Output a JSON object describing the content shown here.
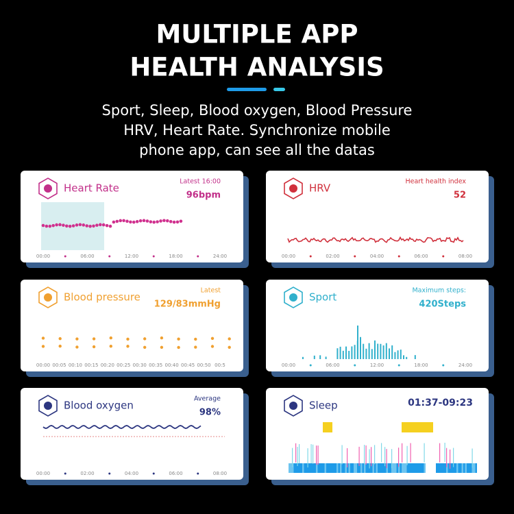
{
  "header": {
    "title_lines": [
      "MULTIPLE APP",
      "HEALTH ANALYSIS"
    ],
    "subtitle_lines": [
      "Sport, Sleep, Blood oxygen, Blood Pressure",
      "HRV, Heart Rate.  Synchronize mobile",
      "phone app, can see all the datas"
    ]
  },
  "cards": [
    {
      "title": "Heart Rate",
      "label": "Latest 16:00",
      "value": "96bpm",
      "ticks": [
        "00:00",
        "06:00",
        "12:00",
        "18:00",
        "24:00"
      ]
    },
    {
      "title": "HRV",
      "label": "Heart health index",
      "value": "52",
      "ticks": [
        "00:00",
        "02:00",
        "04:00",
        "06:00",
        "08:00"
      ]
    },
    {
      "title": "Blood pressure",
      "label": "Latest",
      "value": "129/83mmHg",
      "ticks": [
        "00:00",
        "00:05",
        "00:10",
        "00:15",
        "00:20",
        "00:25",
        "00:30",
        "00:35",
        "00:40",
        "00:45",
        "00:50",
        "00:5"
      ]
    },
    {
      "title": "Sport",
      "label": "Maximum steps:",
      "value": "420Steps",
      "ticks": [
        "00:00",
        "06:00",
        "12:00",
        "18:00",
        "24:00"
      ]
    },
    {
      "title": "Blood oxygen",
      "label": "Average",
      "value": "98%",
      "ticks": [
        "00:00",
        "02:00",
        "04:00",
        "06:00",
        "08:00"
      ]
    },
    {
      "title": "Sleep",
      "value": "01:37-09:23"
    }
  ]
}
